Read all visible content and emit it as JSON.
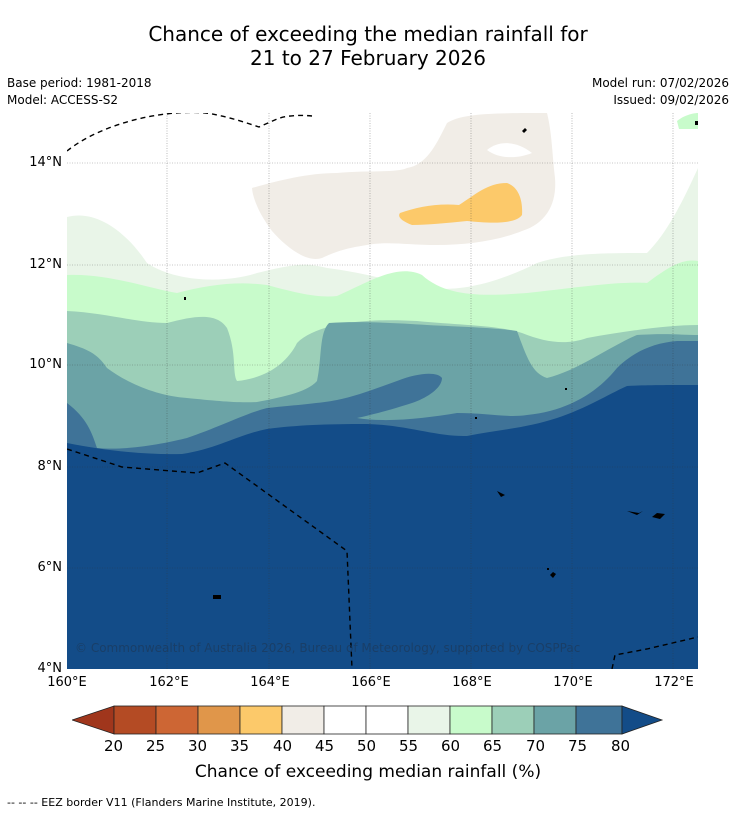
{
  "title": {
    "line1": "Chance of exceeding the median rainfall for",
    "line2": "21 to 27 February 2026"
  },
  "meta": {
    "base_period": "Base period: 1981-2018",
    "model": "Model: ACCESS-S2",
    "model_run": "Model run: 07/02/2026",
    "issued": "Issued: 09/02/2026"
  },
  "map": {
    "lat_labels": [
      "14°N",
      "12°N",
      "10°N",
      "8°N",
      "6°N",
      "4°N"
    ],
    "lon_labels": [
      "160°E",
      "162°E",
      "164°E",
      "166°E",
      "168°E",
      "170°E",
      "172°E"
    ],
    "copyright": "© Commonwealth of Australia 2026, Bureau of Meteorology, supported by COSPPac",
    "colors": {
      "c20": "#a0361c",
      "c25": "#b44b24",
      "c30": "#cd6634",
      "c35": "#e0964a",
      "c40": "#fcc96a",
      "c45": "#f1ede7",
      "c50": "#ffffff",
      "c55": "#ffffff",
      "c60": "#e9f5e8",
      "c65": "#c8fbcb",
      "c70": "#9ccfb8",
      "c75": "#6ba3a6",
      "c80": "#3f7398",
      "c85": "#134c88"
    }
  },
  "colorbar": {
    "ticks": [
      "20",
      "25",
      "30",
      "35",
      "40",
      "45",
      "50",
      "55",
      "60",
      "65",
      "70",
      "75",
      "80"
    ],
    "title": "Chance of exceeding median rainfall (%)"
  },
  "footnote": "--  --  -- EEZ border V11 (Flanders Marine Institute, 2019)."
}
